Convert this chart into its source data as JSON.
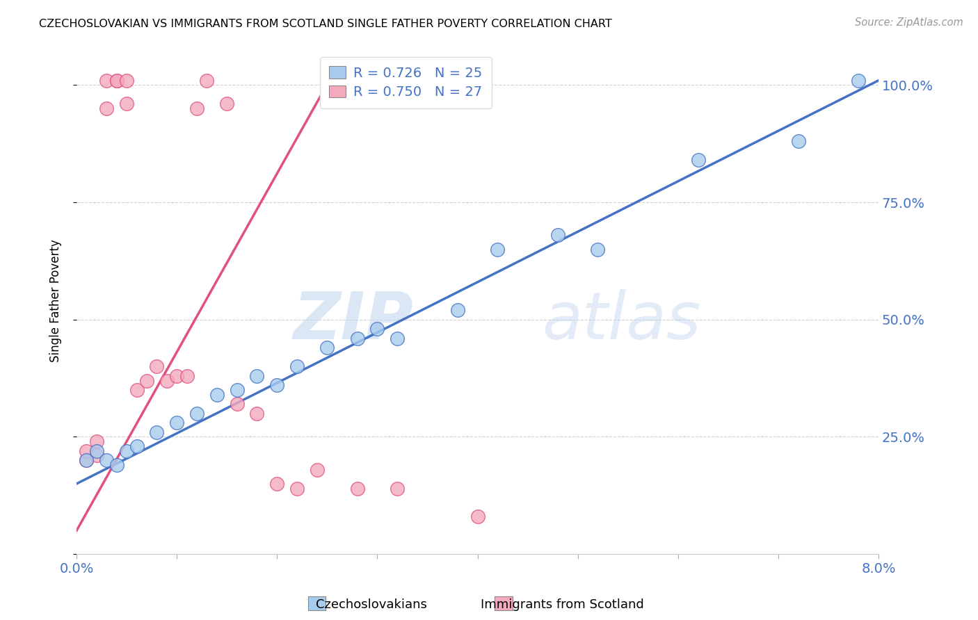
{
  "title": "CZECHOSLOVAKIAN VS IMMIGRANTS FROM SCOTLAND SINGLE FATHER POVERTY CORRELATION CHART",
  "source": "Source: ZipAtlas.com",
  "xlabel_blue": "Czechoslovakians",
  "xlabel_pink": "Immigrants from Scotland",
  "ylabel": "Single Father Poverty",
  "x_min": 0.0,
  "x_max": 0.08,
  "y_min": 0.0,
  "y_max": 1.08,
  "legend_R_blue": "R = 0.726",
  "legend_N_blue": "N = 25",
  "legend_R_pink": "R = 0.750",
  "legend_N_pink": "N = 27",
  "blue_color": "#A8CCEE",
  "pink_color": "#F4AABC",
  "blue_line_color": "#4472C4",
  "pink_line_color": "#E05080",
  "watermark_zip": "ZIP",
  "watermark_atlas": "atlas",
  "blue_scatter_x": [
    0.001,
    0.002,
    0.003,
    0.004,
    0.005,
    0.006,
    0.008,
    0.01,
    0.012,
    0.014,
    0.016,
    0.018,
    0.02,
    0.022,
    0.025,
    0.028,
    0.03,
    0.032,
    0.038,
    0.042,
    0.048,
    0.052,
    0.062,
    0.072,
    0.078
  ],
  "blue_scatter_y": [
    0.2,
    0.22,
    0.2,
    0.19,
    0.22,
    0.23,
    0.26,
    0.28,
    0.3,
    0.34,
    0.35,
    0.38,
    0.36,
    0.4,
    0.44,
    0.46,
    0.48,
    0.46,
    0.52,
    0.65,
    0.68,
    0.65,
    0.84,
    0.88,
    1.01
  ],
  "pink_scatter_x": [
    0.001,
    0.001,
    0.002,
    0.002,
    0.003,
    0.003,
    0.004,
    0.004,
    0.005,
    0.005,
    0.006,
    0.007,
    0.008,
    0.009,
    0.01,
    0.011,
    0.012,
    0.013,
    0.015,
    0.016,
    0.018,
    0.02,
    0.022,
    0.024,
    0.028,
    0.032,
    0.04
  ],
  "pink_scatter_y": [
    0.2,
    0.22,
    0.21,
    0.24,
    0.95,
    1.01,
    1.01,
    1.01,
    0.96,
    1.01,
    0.35,
    0.37,
    0.4,
    0.37,
    0.38,
    0.38,
    0.95,
    1.01,
    0.96,
    0.32,
    0.3,
    0.15,
    0.14,
    0.18,
    0.14,
    0.14,
    0.08
  ],
  "blue_line_x": [
    0.0,
    0.08
  ],
  "blue_line_y": [
    0.15,
    1.01
  ],
  "pink_line_x": [
    0.0,
    0.026
  ],
  "pink_line_y": [
    0.05,
    1.04
  ]
}
